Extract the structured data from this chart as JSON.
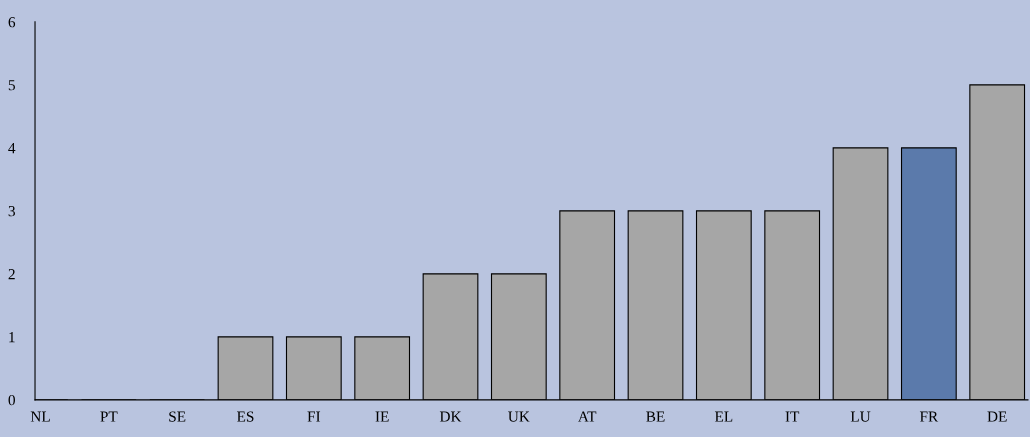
{
  "chart_data": {
    "type": "bar",
    "categories": [
      "NL",
      "PT",
      "SE",
      "ES",
      "FI",
      "IE",
      "DK",
      "UK",
      "AT",
      "BE",
      "EL",
      "IT",
      "LU",
      "FR",
      "DE"
    ],
    "values": [
      0,
      0,
      0,
      1,
      1,
      1,
      2,
      2,
      3,
      3,
      3,
      3,
      4,
      4,
      5
    ],
    "colors": [
      "#a6a6a6",
      "#a6a6a6",
      "#a6a6a6",
      "#a6a6a6",
      "#a6a6a6",
      "#a6a6a6",
      "#a6a6a6",
      "#a6a6a6",
      "#a6a6a6",
      "#a6a6a6",
      "#a6a6a6",
      "#a6a6a6",
      "#a6a6a6",
      "#5b7aab",
      "#a6a6a6"
    ],
    "ylim": [
      0,
      6
    ],
    "yticks": [
      0,
      1,
      2,
      3,
      4,
      5,
      6
    ],
    "grid": false,
    "legend": false
  }
}
